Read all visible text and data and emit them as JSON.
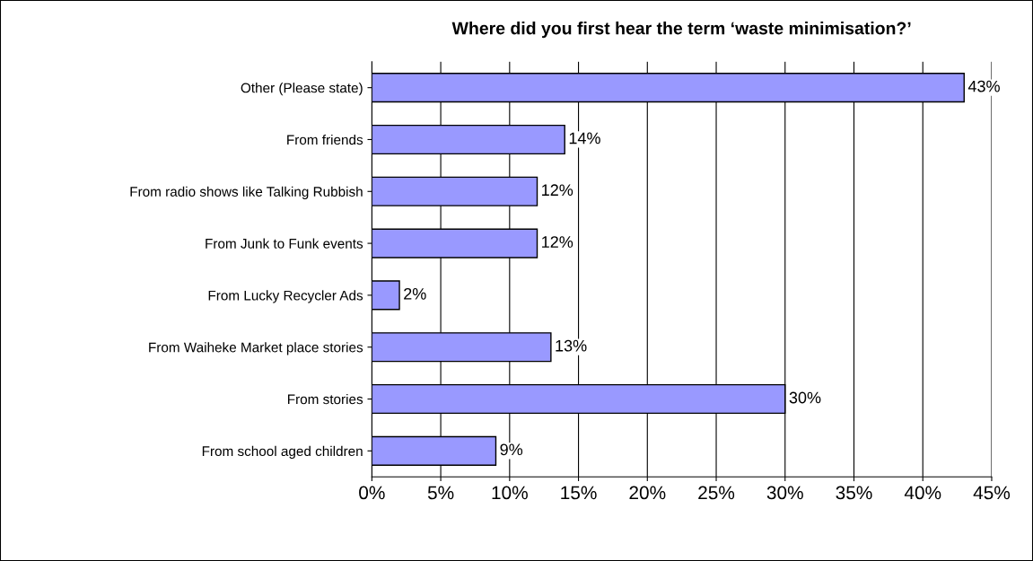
{
  "chart_data": {
    "type": "bar",
    "orientation": "horizontal",
    "title": "Where did you first hear the term ‘waste minimisation?’",
    "categories": [
      "Other (Please state)",
      "From friends",
      "From radio shows like Talking Rubbish",
      "From Junk to Funk events",
      "From Lucky Recycler Ads",
      "From Waiheke Market place stories",
      "From stories",
      "From school aged children"
    ],
    "values": [
      43,
      14,
      12,
      12,
      2,
      13,
      30,
      9
    ],
    "value_labels": [
      "43%",
      "14%",
      "12%",
      "12%",
      "2%",
      "13%",
      "30%",
      "9%"
    ],
    "color": "#9999ff",
    "xlim": [
      0,
      45
    ],
    "xticks": [
      {
        "value": 0,
        "label": "0%"
      },
      {
        "value": 5,
        "label": "5%"
      },
      {
        "value": 10,
        "label": "10%"
      },
      {
        "value": 15,
        "label": "15%"
      },
      {
        "value": 20,
        "label": "20%"
      },
      {
        "value": 25,
        "label": "25%"
      },
      {
        "value": 30,
        "label": "30%"
      },
      {
        "value": 35,
        "label": "35%"
      },
      {
        "value": 40,
        "label": "40%"
      },
      {
        "value": 45,
        "label": "45%"
      }
    ],
    "grid": "x",
    "legend": false
  }
}
